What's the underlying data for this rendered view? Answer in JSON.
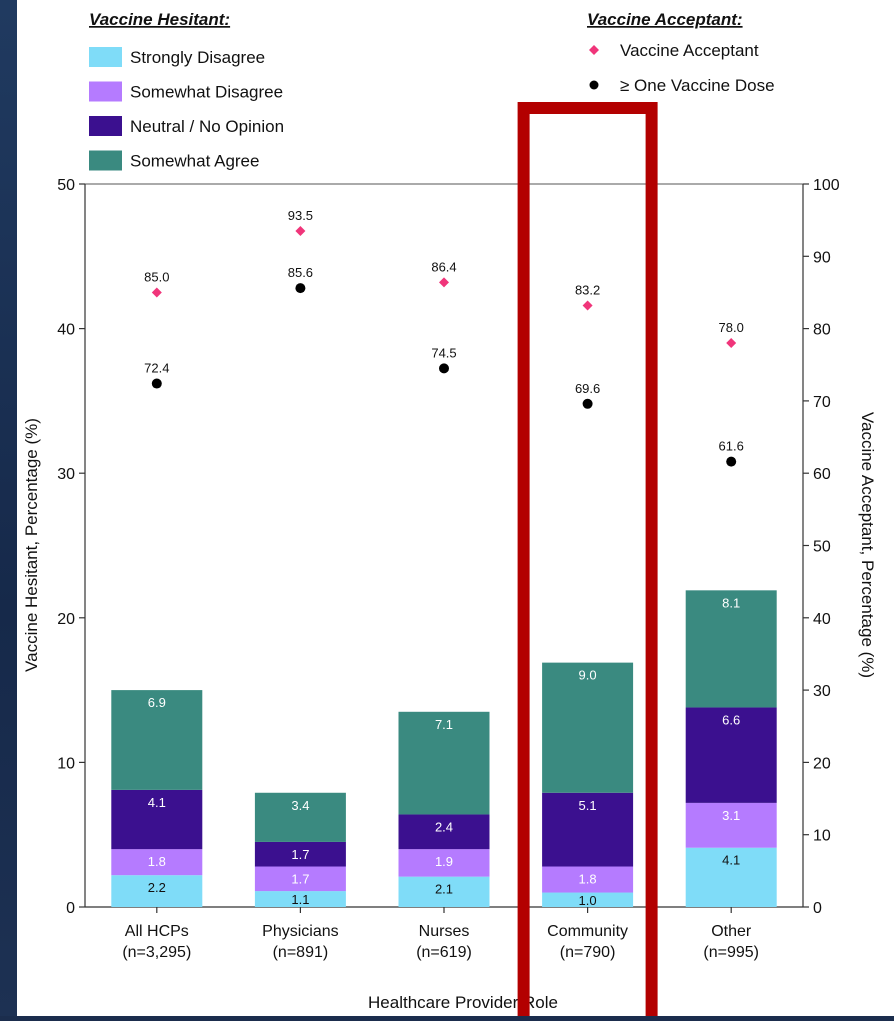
{
  "chart_data": {
    "type": "bar",
    "stacked": true,
    "categories": [
      "All HCPs",
      "Physicians",
      "Nurses",
      "Community",
      "Other"
    ],
    "category_counts": [
      "(n=3,295)",
      "(n=891)",
      "(n=619)",
      "(n=790)",
      "(n=995)"
    ],
    "xlabel": "Healthcare Provider Role",
    "ylabel": "Vaccine Hesitant, Percentage (%)",
    "ylabel_right": "Vaccine Acceptant, Percentage (%)",
    "ylim": [
      0,
      50
    ],
    "ylim_right": [
      0,
      100
    ],
    "yticks": [
      "0",
      "10",
      "20",
      "30",
      "40",
      "50"
    ],
    "yticks_right": [
      "0",
      "10",
      "20",
      "30",
      "40",
      "50",
      "60",
      "70",
      "80",
      "90",
      "100"
    ],
    "legend_hesitant_title": "Vaccine Hesitant:",
    "legend_acceptant_title": "Vaccine Acceptant:",
    "series": [
      {
        "name": "Strongly Disagree",
        "color": "#7fdcf8",
        "label_color": "#111111",
        "values": [
          2.2,
          1.1,
          2.1,
          1.0,
          4.1
        ],
        "labels": [
          "2.2",
          "1.1",
          "2.1",
          "1.0",
          "4.1"
        ]
      },
      {
        "name": "Somewhat Disagree",
        "color": "#b57bff",
        "label_color": "#ffffff",
        "values": [
          1.8,
          1.7,
          1.9,
          1.8,
          3.1
        ],
        "labels": [
          "1.8",
          "1.7",
          "1.9",
          "1.8",
          "3.1"
        ]
      },
      {
        "name": "Neutral / No Opinion",
        "color": "#3b108f",
        "label_color": "#ffffff",
        "values": [
          4.1,
          1.7,
          2.4,
          5.1,
          6.6
        ],
        "labels": [
          "4.1",
          "1.7",
          "2.4",
          "5.1",
          "6.6"
        ]
      },
      {
        "name": "Somewhat Agree",
        "color": "#3a8a80",
        "label_color": "#ffffff",
        "values": [
          6.9,
          3.4,
          7.1,
          9.0,
          8.1
        ],
        "labels": [
          "6.9",
          "3.4",
          "7.1",
          "9.0",
          "8.1"
        ]
      }
    ],
    "points": [
      {
        "name": "Vaccine Acceptant",
        "marker": "diamond",
        "color": "#f0357a",
        "values": [
          85.0,
          93.5,
          86.4,
          83.2,
          78.0
        ],
        "labels": [
          "85.0",
          "93.5",
          "86.4",
          "83.2",
          "78.0"
        ]
      },
      {
        "name": "≥ One Vaccine Dose",
        "marker": "circle",
        "color": "#000000",
        "values": [
          72.4,
          85.6,
          74.5,
          69.6,
          61.6
        ],
        "labels": [
          "72.4",
          "85.6",
          "74.5",
          "69.6",
          "61.6"
        ]
      }
    ],
    "highlight": {
      "category": "Community",
      "color": "#b30000"
    }
  }
}
